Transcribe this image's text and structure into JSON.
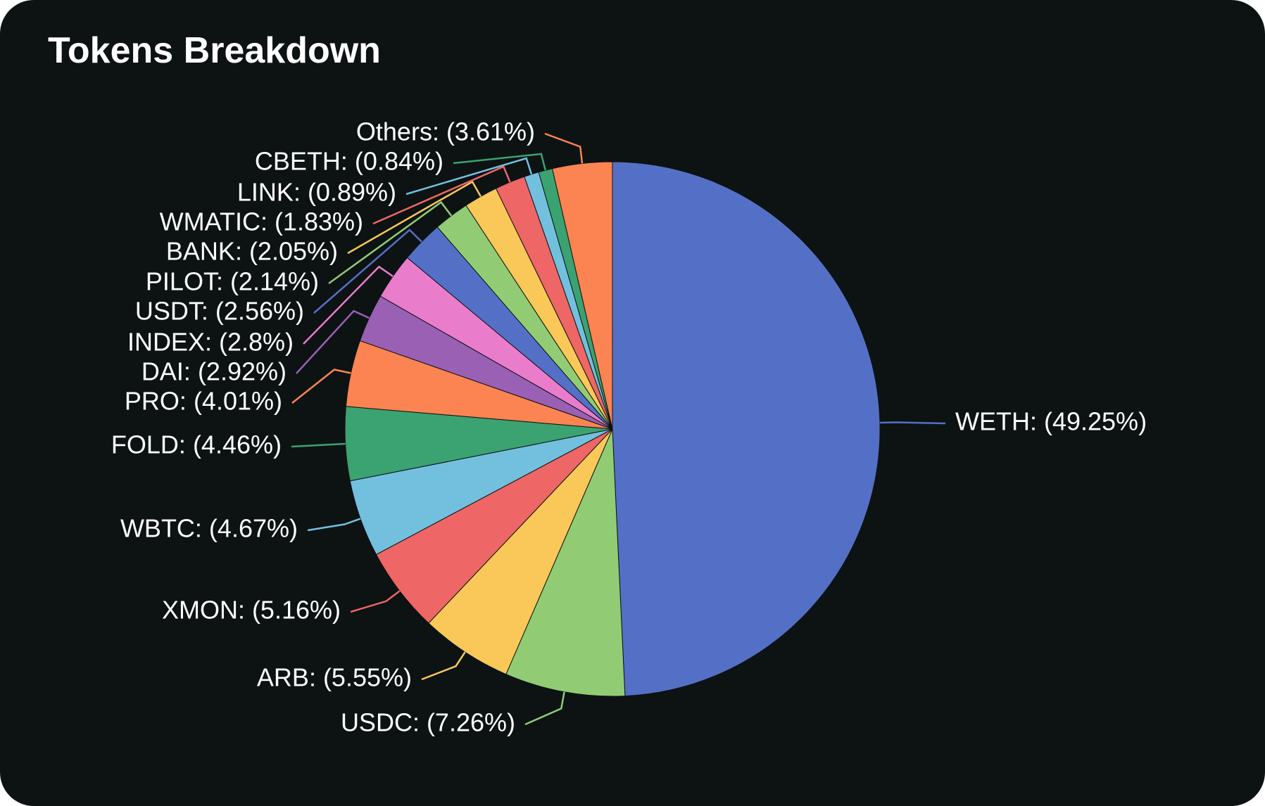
{
  "chart_data": {
    "type": "pie",
    "title": "Tokens Breakdown",
    "start_angle_deg": 0,
    "direction": "clockwise",
    "slices": [
      {
        "name": "WETH",
        "value": 49.25,
        "label": "WETH: (49.25%)",
        "color": "#5470c6"
      },
      {
        "name": "USDC",
        "value": 7.26,
        "label": "USDC: (7.26%)",
        "color": "#91cc75"
      },
      {
        "name": "ARB",
        "value": 5.55,
        "label": "ARB: (5.55%)",
        "color": "#fac858"
      },
      {
        "name": "XMON",
        "value": 5.16,
        "label": "XMON: (5.16%)",
        "color": "#ee6666"
      },
      {
        "name": "WBTC",
        "value": 4.67,
        "label": "WBTC: (4.67%)",
        "color": "#73c0de"
      },
      {
        "name": "FOLD",
        "value": 4.46,
        "label": "FOLD: (4.46%)",
        "color": "#3ba272"
      },
      {
        "name": "PRO",
        "value": 4.01,
        "label": "PRO: (4.01%)",
        "color": "#fc8452"
      },
      {
        "name": "DAI",
        "value": 2.92,
        "label": "DAI: (2.92%)",
        "color": "#9a60b4"
      },
      {
        "name": "INDEX",
        "value": 2.8,
        "label": "INDEX: (2.8%)",
        "color": "#ea7ccc"
      },
      {
        "name": "USDT",
        "value": 2.56,
        "label": "USDT: (2.56%)",
        "color": "#5470c6"
      },
      {
        "name": "PILOT",
        "value": 2.14,
        "label": "PILOT: (2.14%)",
        "color": "#91cc75"
      },
      {
        "name": "BANK",
        "value": 2.05,
        "label": "BANK: (2.05%)",
        "color": "#fac858"
      },
      {
        "name": "WMATIC",
        "value": 1.83,
        "label": "WMATIC: (1.83%)",
        "color": "#ee6666"
      },
      {
        "name": "LINK",
        "value": 0.89,
        "label": "LINK: (0.89%)",
        "color": "#73c0de"
      },
      {
        "name": "CBETH",
        "value": 0.84,
        "label": "CBETH: (0.84%)",
        "color": "#3ba272"
      },
      {
        "name": "Others",
        "value": 3.61,
        "label": "Others: (3.61%)",
        "color": "#fc8452"
      }
    ]
  }
}
